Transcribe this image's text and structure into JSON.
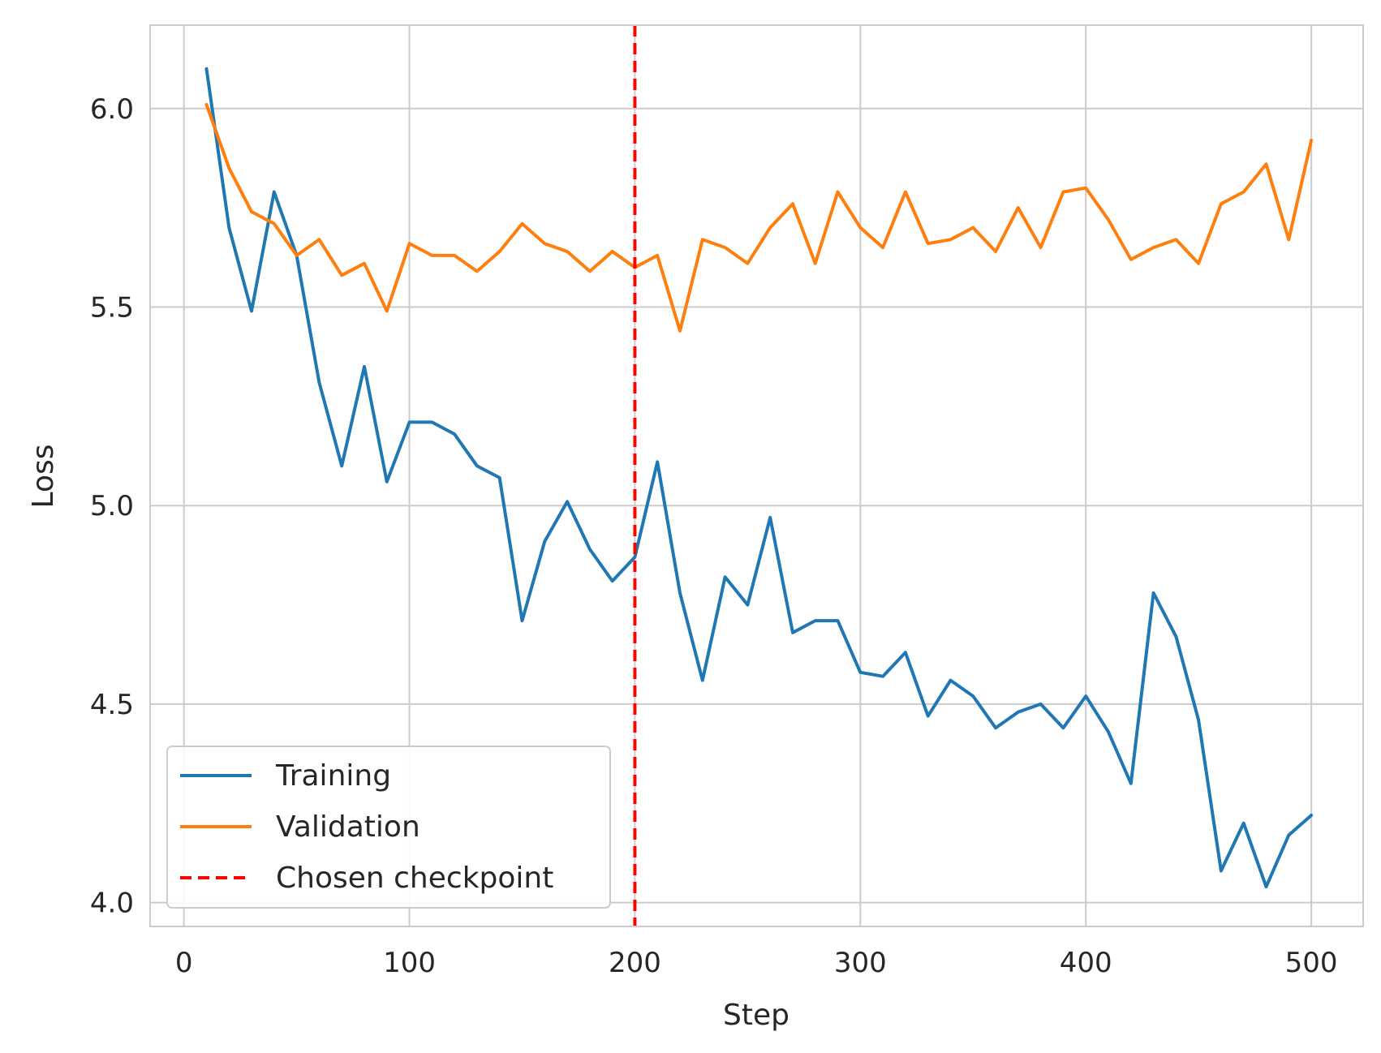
{
  "chart_data": {
    "type": "line",
    "xlabel": "Step",
    "ylabel": "Loss",
    "xlim": [
      -15,
      523
    ],
    "ylim": [
      3.94,
      6.21
    ],
    "xticks": [
      0,
      100,
      200,
      300,
      400,
      500
    ],
    "yticks": [
      4.0,
      4.5,
      5.0,
      5.5,
      6.0
    ],
    "ytick_labels": [
      "4.0",
      "4.5",
      "5.0",
      "5.5",
      "6.0"
    ],
    "grid": true,
    "legend_position": "bottom-left",
    "x": [
      10,
      20,
      30,
      40,
      50,
      60,
      70,
      80,
      90,
      100,
      110,
      120,
      130,
      140,
      150,
      160,
      170,
      180,
      190,
      200,
      210,
      220,
      230,
      240,
      250,
      260,
      270,
      280,
      290,
      300,
      310,
      320,
      330,
      340,
      350,
      360,
      370,
      380,
      390,
      400,
      410,
      420,
      430,
      440,
      450,
      460,
      470,
      480,
      490,
      500
    ],
    "series": [
      {
        "name": "Training",
        "color": "#1f77b4",
        "values": [
          6.1,
          5.7,
          5.49,
          5.79,
          5.63,
          5.31,
          5.1,
          5.35,
          5.06,
          5.21,
          5.21,
          5.18,
          5.1,
          5.07,
          4.71,
          4.91,
          5.01,
          4.89,
          4.81,
          4.87,
          5.11,
          4.78,
          4.56,
          4.82,
          4.75,
          4.97,
          4.68,
          4.71,
          4.71,
          4.58,
          4.57,
          4.63,
          4.47,
          4.56,
          4.52,
          4.44,
          4.48,
          4.5,
          4.44,
          4.52,
          4.43,
          4.3,
          4.78,
          4.67,
          4.46,
          4.08,
          4.2,
          4.04,
          4.17,
          4.22
        ]
      },
      {
        "name": "Validation",
        "color": "#ff7f0e",
        "values": [
          6.01,
          5.85,
          5.74,
          5.71,
          5.63,
          5.67,
          5.58,
          5.61,
          5.49,
          5.66,
          5.63,
          5.63,
          5.59,
          5.64,
          5.71,
          5.66,
          5.64,
          5.59,
          5.64,
          5.6,
          5.63,
          5.44,
          5.67,
          5.65,
          5.61,
          5.7,
          5.76,
          5.61,
          5.79,
          5.7,
          5.65,
          5.79,
          5.66,
          5.67,
          5.7,
          5.64,
          5.75,
          5.65,
          5.79,
          5.8,
          5.72,
          5.62,
          5.65,
          5.67,
          5.61,
          5.76,
          5.79,
          5.86,
          5.67,
          5.92
        ]
      }
    ],
    "vline": {
      "name": "Chosen checkpoint",
      "x": 200,
      "color": "#ff0000",
      "style": "dashed"
    }
  }
}
